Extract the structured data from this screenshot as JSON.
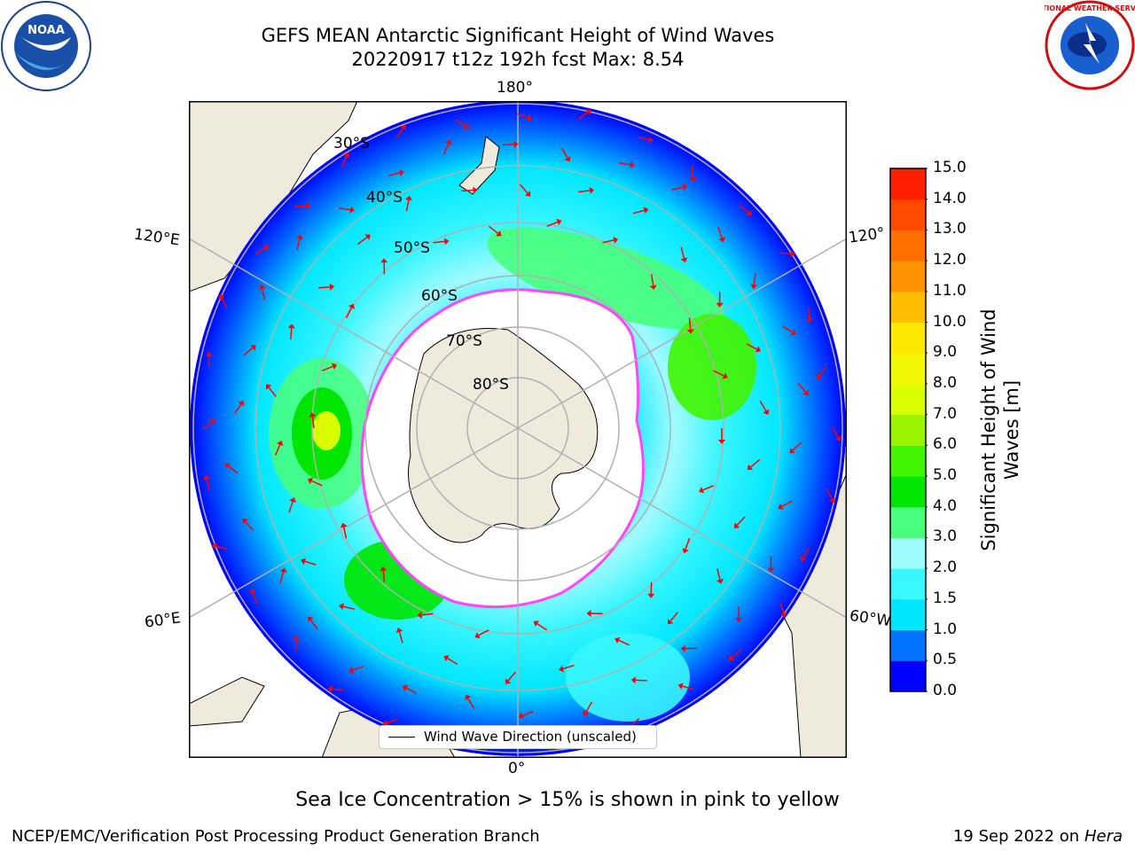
{
  "header": {
    "title_line1": "GEFS MEAN Antarctic Significant Height of Wind Waves",
    "title_line2": "20220917 t12z 192h fcst   Max: 8.54"
  },
  "logos": {
    "noaa": "NOAA",
    "nws": "NATIONAL WEATHER SERVICE"
  },
  "map": {
    "projection": "south-polar-stereographic",
    "longitude_labels": {
      "top": "180°",
      "bottom": "0°",
      "left_upper": "120°E",
      "left_lower": "60°E",
      "right_upper": "120°",
      "right_lower": "60°W"
    },
    "latitude_labels": [
      "30°S",
      "40°S",
      "50°S",
      "60°S",
      "70°S",
      "80°S"
    ],
    "legend_label": "Wind Wave Direction (unscaled)",
    "colors": {
      "land": "#efebdc",
      "ocean_fill": "#ffffff",
      "grid": "#b0b0b0",
      "arrow": "#ff0000",
      "sea_ice_edge": "#ff44ff"
    }
  },
  "colorbar": {
    "label": "Significant Height of Wind Waves [m]",
    "ticks": [
      "0.0",
      "0.5",
      "1.0",
      "1.5",
      "2.0",
      "3.0",
      "4.0",
      "5.0",
      "6.0",
      "7.0",
      "8.0",
      "9.0",
      "10.0",
      "11.0",
      "12.0",
      "13.0",
      "14.0",
      "15.0"
    ],
    "colors": [
      "#0000ff",
      "#0073ff",
      "#00e6ff",
      "#39f6ff",
      "#a0fbff",
      "#48ff7c",
      "#00e600",
      "#41f400",
      "#9af500",
      "#d9ff00",
      "#f2f700",
      "#ffe800",
      "#ffbe00",
      "#ff9200",
      "#ff7000",
      "#ff4b00",
      "#ff1e00"
    ]
  },
  "footer": {
    "subtitle": "Sea Ice Concentration > 15% is shown in pink to yellow",
    "left": "NCEP/EMC/Verification Post Processing Product Generation Branch",
    "right_date": "19 Sep 2022 on",
    "right_system": "Hera"
  }
}
